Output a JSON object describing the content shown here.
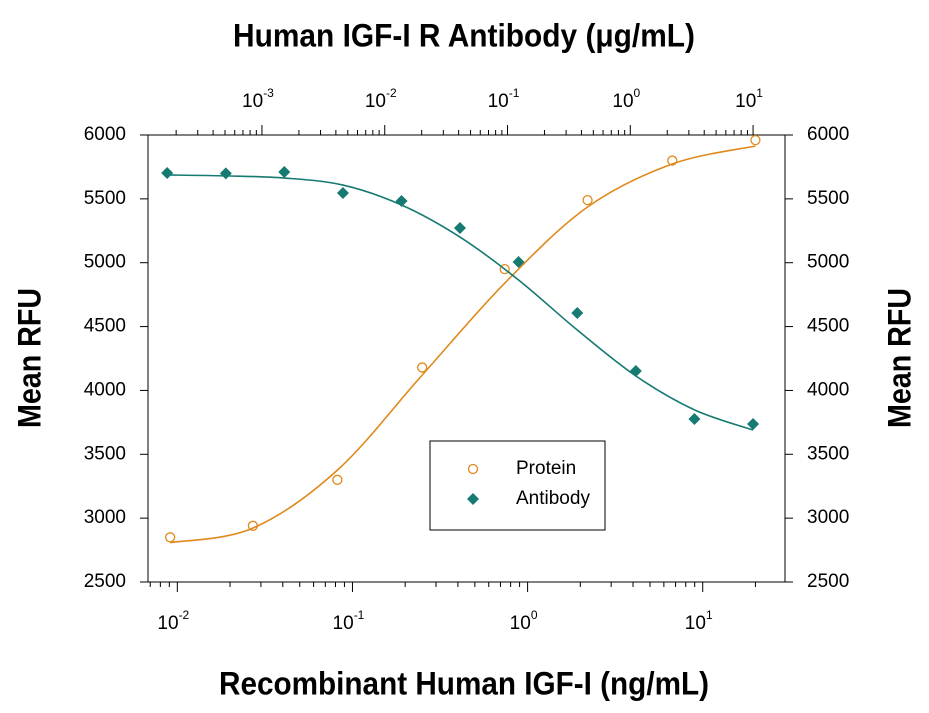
{
  "chart_data": {
    "type": "scatter",
    "x_label": "Recombinant Human IGF-I (ng/mL)",
    "x2_label": "Human IGF-I R Antibody (μg/mL)",
    "y_label": "Mean RFU",
    "y2_label": "Mean RFU",
    "log_x": true,
    "xlim": [
      0.0068,
      29.5
    ],
    "xticks": [
      {
        "value": 0.01,
        "label": "10",
        "exponent": "-2"
      },
      {
        "value": 0.1,
        "label": "10",
        "exponent": "-1"
      },
      {
        "value": 1,
        "label": "10",
        "exponent": "0"
      },
      {
        "value": 10,
        "label": "10",
        "exponent": "1"
      }
    ],
    "x2lim": [
      0.000118,
      18.2
    ],
    "x2ticks": [
      {
        "value": 0.001,
        "label": "10",
        "exponent": "-3"
      },
      {
        "value": 0.01,
        "label": "10",
        "exponent": "-2"
      },
      {
        "value": 0.1,
        "label": "10",
        "exponent": "-1"
      },
      {
        "value": 1,
        "label": "10",
        "exponent": "0"
      },
      {
        "value": 10,
        "label": "10",
        "exponent": "1"
      }
    ],
    "ylim": [
      2500,
      6000
    ],
    "yticks": [
      2500,
      3000,
      3500,
      4000,
      4500,
      5000,
      5500,
      6000
    ],
    "y2lim": [
      2500,
      6000
    ],
    "y2ticks": [
      2500,
      3000,
      3500,
      4000,
      4500,
      5000,
      5500,
      6000
    ],
    "legend": "lower center",
    "series": [
      {
        "name": "Protein",
        "color": "#e0891c",
        "marker": "open-circle",
        "x_axis": "x",
        "x": [
          0.0091,
          0.027,
          0.082,
          0.25,
          0.74,
          2.2,
          6.7,
          20
        ],
        "values": [
          2850,
          2940,
          3300,
          4180,
          4950,
          5490,
          5800,
          5960
        ],
        "fit": [
          2808,
          2922,
          3376,
          4120,
          4840,
          5436,
          5773,
          5914
        ]
      },
      {
        "name": "Antibody",
        "color": "#157a72",
        "marker": "diamond",
        "x_axis": "x2",
        "x": [
          0.000169,
          0.000508,
          0.00152,
          0.00457,
          0.0137,
          0.041,
          0.123,
          0.37,
          1.11,
          3.33,
          10
        ],
        "values": [
          5702,
          5700,
          5710,
          5546,
          5483,
          5272,
          5006,
          4606,
          4152,
          3776,
          3737
        ],
        "fit": [
          5687,
          5680,
          5663,
          5608,
          5452,
          5201,
          4865,
          4473,
          4113,
          3848,
          3690
        ]
      }
    ]
  }
}
